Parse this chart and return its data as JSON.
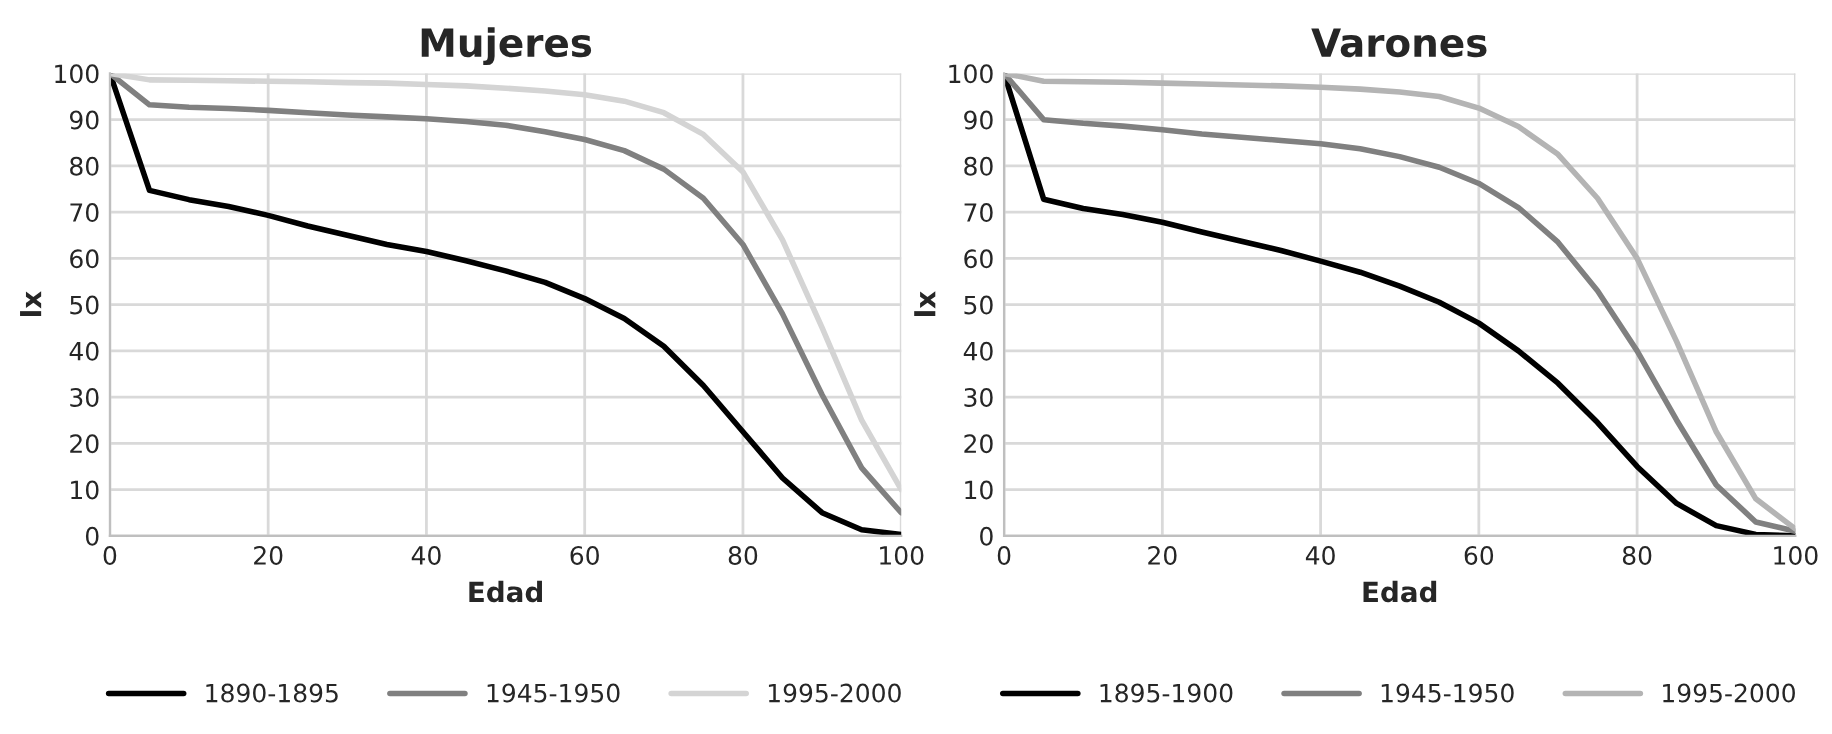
{
  "chart_data": [
    {
      "type": "line",
      "title": "Mujeres",
      "xlabel": "Edad",
      "ylabel": "lx",
      "xlim": [
        0,
        100
      ],
      "xticks": [
        0,
        20,
        40,
        60,
        80,
        100
      ],
      "ylim": [
        0,
        100
      ],
      "yticks": [
        0,
        10,
        20,
        30,
        40,
        50,
        60,
        70,
        80,
        90,
        100
      ],
      "grid": true,
      "legend": "bottom",
      "x": [
        0,
        5,
        10,
        15,
        20,
        25,
        30,
        35,
        40,
        45,
        50,
        55,
        60,
        65,
        70,
        75,
        80,
        85,
        90,
        95,
        100
      ],
      "series": [
        {
          "name": "1890-1895",
          "color": "#000000",
          "values": [
            100,
            74.7,
            72.7,
            71.2,
            69.3,
            67,
            65,
            63,
            61.5,
            59.5,
            57.3,
            54.8,
            51.3,
            47,
            41,
            32.5,
            22.5,
            12.5,
            5,
            1.3,
            0.3
          ]
        },
        {
          "name": "1945-1950",
          "color": "#808080",
          "values": [
            100,
            93.2,
            92.7,
            92.4,
            92,
            91.5,
            91,
            90.6,
            90.2,
            89.6,
            88.8,
            87.4,
            85.7,
            83.3,
            79.3,
            73,
            63,
            48,
            30.5,
            14.7,
            5
          ]
        },
        {
          "name": "1995-2000",
          "color": "#d4d4d4",
          "values": [
            100,
            98.6,
            98.5,
            98.4,
            98.3,
            98.2,
            98,
            97.9,
            97.6,
            97.3,
            96.8,
            96.2,
            95.4,
            94,
            91.5,
            86.8,
            78.7,
            64,
            45,
            25,
            10
          ]
        }
      ]
    },
    {
      "type": "line",
      "title": "Varones",
      "xlabel": "Edad",
      "ylabel": "lx",
      "xlim": [
        0,
        100
      ],
      "xticks": [
        0,
        20,
        40,
        60,
        80,
        100
      ],
      "ylim": [
        0,
        100
      ],
      "yticks": [
        0,
        10,
        20,
        30,
        40,
        50,
        60,
        70,
        80,
        90,
        100
      ],
      "grid": true,
      "legend": "bottom",
      "x": [
        0,
        5,
        10,
        15,
        20,
        25,
        30,
        35,
        40,
        45,
        50,
        55,
        60,
        65,
        70,
        75,
        80,
        85,
        90,
        95,
        100
      ],
      "series": [
        {
          "name": "1895-1900",
          "color": "#000000",
          "values": [
            100,
            72.8,
            70.8,
            69.5,
            67.8,
            65.7,
            63.7,
            61.7,
            59.4,
            57,
            54,
            50.5,
            46,
            40,
            33,
            24.5,
            15,
            7,
            2.2,
            0.3,
            0
          ]
        },
        {
          "name": "1945-1950",
          "color": "#808080",
          "values": [
            100,
            90,
            89.2,
            88.6,
            87.8,
            86.9,
            86.2,
            85.5,
            84.8,
            83.7,
            82,
            79.7,
            76.2,
            71,
            63.5,
            53,
            40,
            25,
            11,
            3,
            1
          ]
        },
        {
          "name": "1995-2000",
          "color": "#b4b4b4",
          "values": [
            100,
            98.3,
            98.2,
            98.1,
            97.9,
            97.7,
            97.5,
            97.3,
            97,
            96.6,
            96,
            95,
            92.5,
            88.5,
            82.5,
            73,
            60,
            42,
            22.5,
            8,
            1.5
          ]
        }
      ]
    }
  ]
}
